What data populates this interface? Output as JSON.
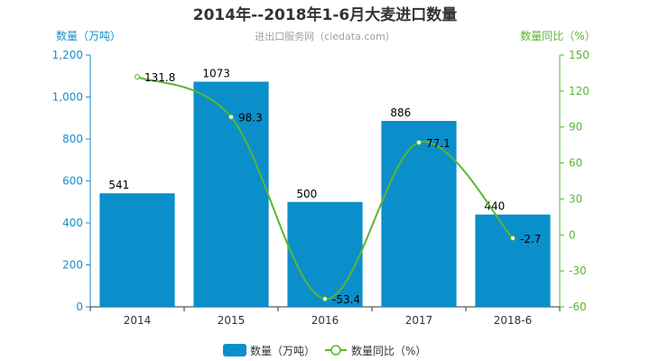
{
  "title": "2014年--2018年1-6月大麦进口数量",
  "subtitle": "进出口服务网（ciedata.com）",
  "colors": {
    "bar": "#0a8fcb",
    "line": "#5bb531",
    "left_axis": "#1a8fc9",
    "right_axis": "#5bb531"
  },
  "chart_data": {
    "type": "bar",
    "categories": [
      "2014",
      "2015",
      "2016",
      "2017",
      "2018-6"
    ],
    "series": [
      {
        "name": "数量（万吨）",
        "type": "bar",
        "axis": "left",
        "values": [
          541,
          1073,
          500,
          886,
          440
        ]
      },
      {
        "name": "数量同比（%）",
        "type": "line",
        "axis": "right",
        "values": [
          131.8,
          98.3,
          -53.4,
          77.1,
          -2.7
        ]
      }
    ],
    "ylabel": "数量（万吨）",
    "ylabel_right": "数量同比（%）",
    "ylim": [
      0,
      1200
    ],
    "ylim_right": [
      -60,
      150
    ],
    "yticks_left": [
      "0",
      "200",
      "400",
      "600",
      "800",
      "1,000",
      "1,200"
    ],
    "yticks_right": [
      "-60",
      "-30",
      "0",
      "30",
      "60",
      "90",
      "120",
      "150"
    ],
    "grid": false,
    "legend": "bottom-center"
  }
}
